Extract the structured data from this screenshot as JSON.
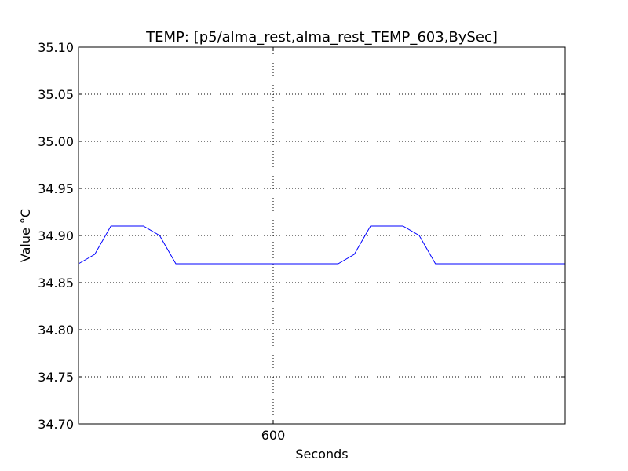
{
  "chart_data": {
    "type": "line",
    "title": "TEMP: [p5/alma_rest,alma_rest_TEMP_603,BySec]",
    "xlabel": "Seconds",
    "ylabel": "Value °C",
    "xlim": [
      480,
      780
    ],
    "ylim": [
      34.7,
      35.1
    ],
    "x_ticks": [
      {
        "value": 600,
        "label": "600"
      }
    ],
    "y_ticks": [
      {
        "value": 34.7,
        "label": "34.70"
      },
      {
        "value": 34.75,
        "label": "34.75"
      },
      {
        "value": 34.8,
        "label": "34.80"
      },
      {
        "value": 34.85,
        "label": "34.85"
      },
      {
        "value": 34.9,
        "label": "34.90"
      },
      {
        "value": 34.95,
        "label": "34.95"
      },
      {
        "value": 35.0,
        "label": "35.00"
      },
      {
        "value": 35.05,
        "label": "35.05"
      },
      {
        "value": 35.1,
        "label": "35.10"
      }
    ],
    "grid": true,
    "series": [
      {
        "color": "#0000ff",
        "x": [
          480,
          490,
          500,
          510,
          520,
          530,
          540,
          550,
          560,
          570,
          580,
          590,
          600,
          610,
          620,
          630,
          640,
          650,
          660,
          670,
          680,
          690,
          700,
          710,
          720,
          730,
          740,
          750,
          760,
          770,
          780
        ],
        "y": [
          34.87,
          34.88,
          34.91,
          34.91,
          34.91,
          34.9,
          34.87,
          34.87,
          34.87,
          34.87,
          34.87,
          34.87,
          34.87,
          34.87,
          34.87,
          34.87,
          34.87,
          34.88,
          34.91,
          34.91,
          34.91,
          34.9,
          34.87,
          34.87,
          34.87,
          34.87,
          34.87,
          34.87,
          34.87,
          34.87,
          34.87
        ]
      }
    ]
  }
}
